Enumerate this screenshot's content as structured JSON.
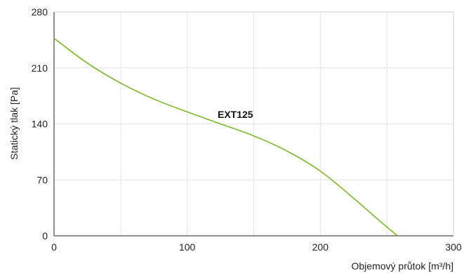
{
  "chart_data": {
    "type": "line",
    "xlabel": "Objemový průtok [m³/h]",
    "ylabel": "Statický tlak [Pa]",
    "xlim": [
      0,
      300
    ],
    "ylim": [
      0,
      280
    ],
    "x_ticks": [
      "0",
      "100",
      "200",
      "300"
    ],
    "y_ticks": [
      "0",
      "70",
      "140",
      "210",
      "280"
    ],
    "grid": true,
    "series": [
      {
        "name": "EXT125",
        "color": "#7ab929",
        "x": [
          0,
          25,
          50,
          75,
          100,
          125,
          150,
          175,
          200,
          225,
          245,
          258
        ],
        "y": [
          247,
          216,
          191,
          171,
          155,
          140,
          125,
          106,
          81,
          47,
          18,
          0
        ]
      }
    ]
  }
}
